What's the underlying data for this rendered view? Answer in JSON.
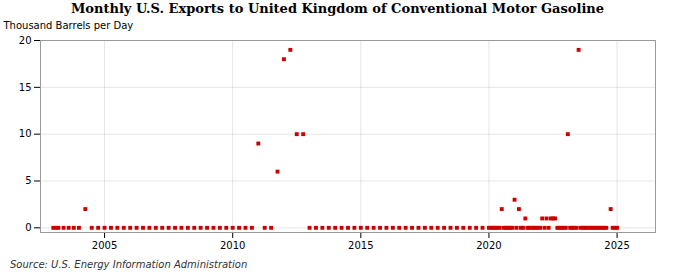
{
  "chart_data": {
    "type": "scatter",
    "title": "Monthly U.S. Exports to United Kingdom of Conventional Motor Gasoline",
    "ylabel": "Thousand Barrels per Day",
    "annotations": [
      "Source: U.S. Energy Information Administration"
    ],
    "color": "#cc0000",
    "marker": "square",
    "grid": true,
    "xlim": [
      2002.5,
      2026.5
    ],
    "ylim": [
      -0.5,
      20
    ],
    "xticks": [
      2005,
      2010,
      2015,
      2020,
      2025
    ],
    "yticks": [
      0,
      5,
      10,
      15,
      20
    ],
    "x": [
      2004.25,
      2003.0,
      2003.1,
      2003.2,
      2003.4,
      2003.6,
      2003.8,
      2004.0,
      2004.5,
      2004.75,
      2005.0,
      2005.25,
      2005.5,
      2005.75,
      2006.0,
      2006.25,
      2006.5,
      2006.75,
      2007.0,
      2007.25,
      2007.5,
      2007.75,
      2008.0,
      2008.25,
      2008.5,
      2008.75,
      2009.0,
      2009.25,
      2009.5,
      2009.75,
      2010.0,
      2010.25,
      2010.5,
      2010.75,
      2011.0,
      2011.25,
      2011.5,
      2011.75,
      2012.0,
      2012.25,
      2012.5,
      2012.75,
      2013.0,
      2013.25,
      2013.5,
      2013.75,
      2014.0,
      2014.25,
      2014.5,
      2014.75,
      2015.0,
      2015.25,
      2015.5,
      2015.75,
      2016.0,
      2016.25,
      2016.5,
      2016.75,
      2017.0,
      2017.25,
      2017.5,
      2017.75,
      2018.0,
      2018.25,
      2018.5,
      2018.75,
      2019.0,
      2019.25,
      2019.5,
      2019.75,
      2020.0,
      2020.08,
      2020.17,
      2020.25,
      2020.33,
      2020.42,
      2020.5,
      2020.58,
      2020.67,
      2020.75,
      2020.83,
      2020.92,
      2021.0,
      2021.08,
      2021.17,
      2021.25,
      2021.33,
      2021.42,
      2021.5,
      2021.58,
      2021.67,
      2021.75,
      2021.83,
      2021.92,
      2022.0,
      2022.08,
      2022.17,
      2022.25,
      2022.33,
      2022.42,
      2022.5,
      2022.58,
      2022.67,
      2022.75,
      2022.83,
      2022.92,
      2023.0,
      2023.08,
      2023.17,
      2023.25,
      2023.33,
      2023.42,
      2023.5,
      2023.58,
      2023.67,
      2023.75,
      2023.83,
      2023.92,
      2024.0,
      2024.08,
      2024.17,
      2024.25,
      2024.33,
      2024.42,
      2024.5,
      2024.58,
      2024.75,
      2024.83,
      2024.92,
      2025.0
    ],
    "values": [
      2.0,
      0.0,
      0.0,
      0.0,
      0.0,
      0.0,
      0.0,
      0.0,
      0.0,
      0.0,
      0.0,
      0.0,
      0.0,
      0.0,
      0.0,
      0.0,
      0.0,
      0.0,
      0.0,
      0.0,
      0.0,
      0.0,
      0.0,
      0.0,
      0.0,
      0.0,
      0.0,
      0.0,
      0.0,
      0.0,
      0.0,
      0.0,
      0.0,
      0.0,
      9.0,
      0.0,
      0.0,
      6.0,
      18.0,
      19.0,
      10.0,
      10.0,
      0.0,
      0.0,
      0.0,
      0.0,
      0.0,
      0.0,
      0.0,
      0.0,
      0.0,
      0.0,
      0.0,
      0.0,
      0.0,
      0.0,
      0.0,
      0.0,
      0.0,
      0.0,
      0.0,
      0.0,
      0.0,
      0.0,
      0.0,
      0.0,
      0.0,
      0.0,
      0.0,
      0.0,
      0.0,
      0.0,
      0.0,
      0.0,
      0.0,
      0.0,
      2.0,
      0.0,
      0.0,
      0.0,
      0.0,
      0.0,
      3.0,
      0.0,
      2.0,
      0.0,
      0.0,
      1.0,
      0.0,
      0.0,
      0.0,
      0.0,
      0.0,
      0.0,
      0.0,
      1.0,
      0.0,
      1.0,
      0.0,
      1.0,
      1.0,
      1.0,
      0.0,
      0.0,
      0.0,
      0.0,
      0.0,
      10.0,
      0.0,
      0.0,
      0.0,
      0.0,
      19.0,
      0.0,
      0.0,
      0.0,
      0.0,
      0.0,
      0.0,
      0.0,
      0.0,
      0.0,
      0.0,
      0.0,
      0.0,
      0.0,
      2.0,
      0.0,
      0.0,
      0.0
    ]
  }
}
